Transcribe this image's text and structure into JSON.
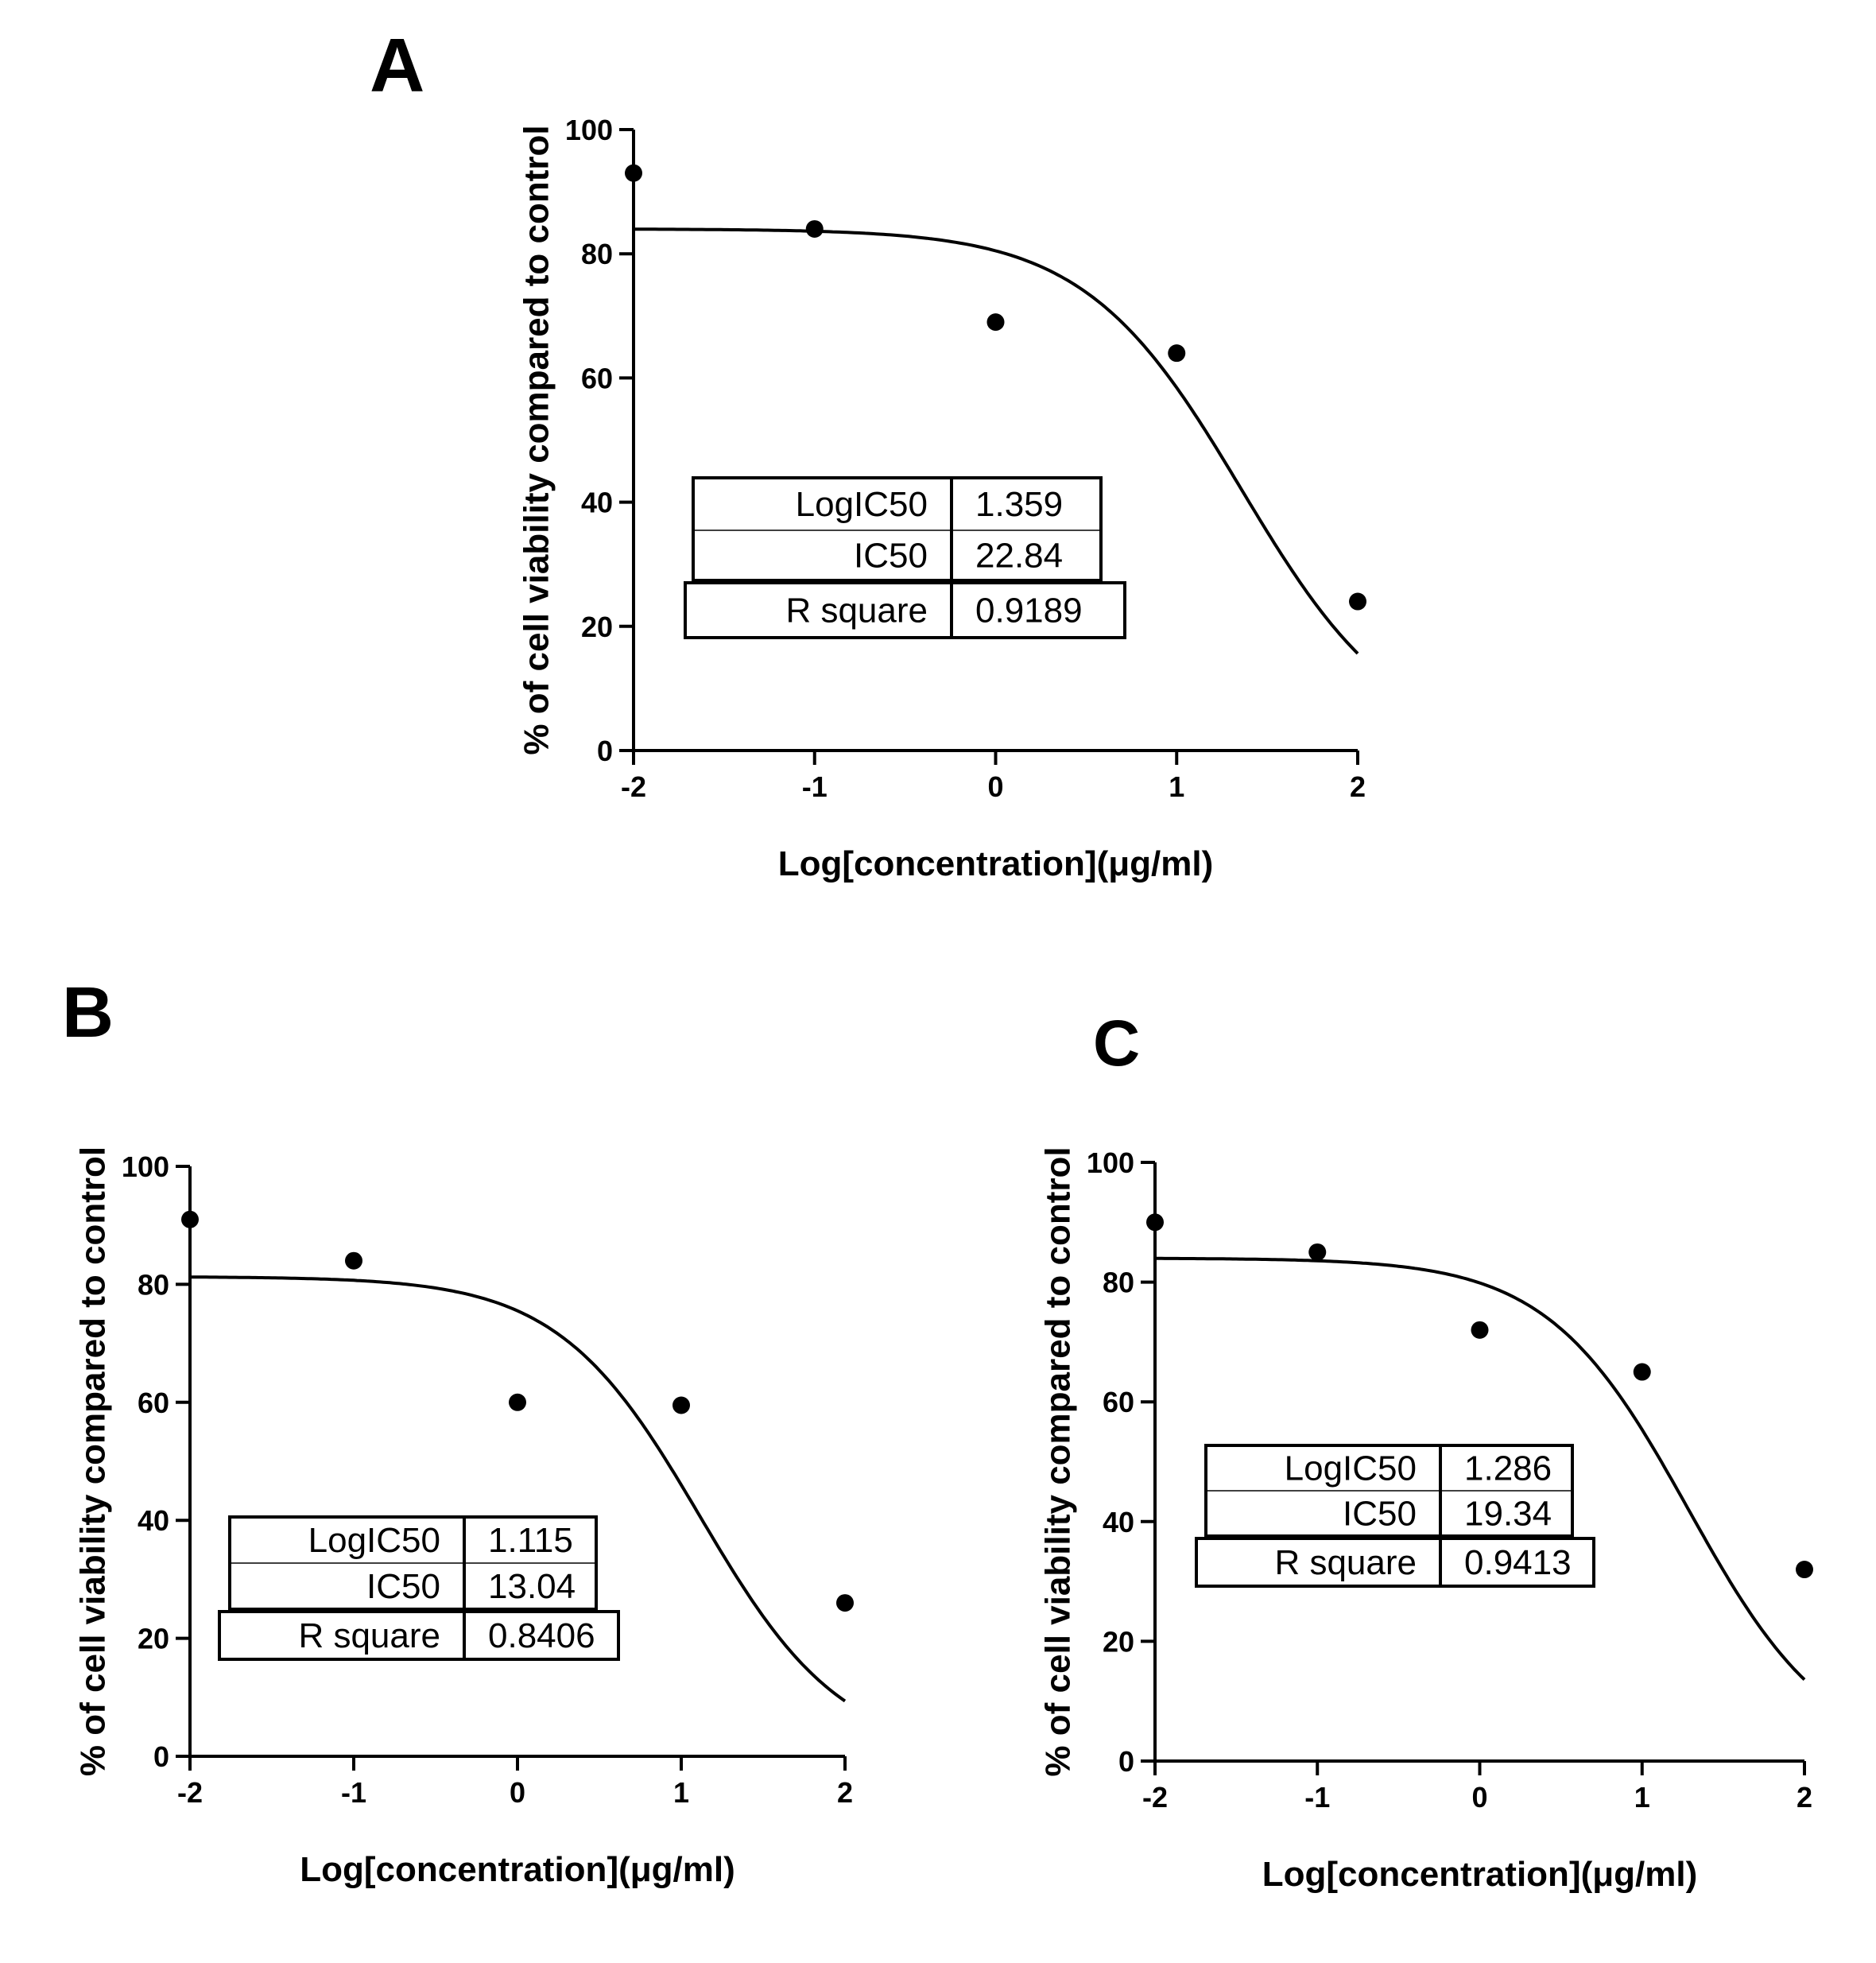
{
  "chart_data": [
    {
      "panel": "A",
      "type": "scatter",
      "fit": "sigmoidal dose-response",
      "xlabel": "Log[concentration](μg/ml)",
      "ylabel": "% of cell viability compared to control",
      "xlim": [
        -2,
        2
      ],
      "ylim": [
        0,
        100
      ],
      "xticks": [
        -2,
        -1,
        0,
        1,
        2
      ],
      "yticks": [
        0,
        20,
        40,
        60,
        80,
        100
      ],
      "x": [
        -2,
        -1,
        0,
        1,
        2
      ],
      "y": [
        93,
        84,
        69,
        64,
        24
      ],
      "curve": {
        "top": 84,
        "bottom": 0,
        "logIC50": 1.359,
        "hillslope": -1
      },
      "stats": [
        {
          "label": "LogIC50",
          "value": "1.359"
        },
        {
          "label": "IC50",
          "value": "22.84"
        },
        {
          "label": "R square",
          "value": "0.9189"
        }
      ]
    },
    {
      "panel": "B",
      "type": "scatter",
      "fit": "sigmoidal dose-response",
      "xlabel": "Log[concentration](μg/ml)",
      "ylabel": "% of cell viability compared to control",
      "xlim": [
        -2,
        2
      ],
      "ylim": [
        0,
        100
      ],
      "xticks": [
        -2,
        -1,
        0,
        1,
        2
      ],
      "yticks": [
        0,
        20,
        40,
        60,
        80,
        100
      ],
      "x": [
        -2,
        -1,
        0,
        1,
        2
      ],
      "y": [
        91,
        84,
        60,
        59.5,
        26
      ],
      "curve": {
        "top": 81.3,
        "bottom": 0,
        "logIC50": 1.115,
        "hillslope": -1
      },
      "stats": [
        {
          "label": "LogIC50",
          "value": "1.115"
        },
        {
          "label": "IC50",
          "value": "13.04"
        },
        {
          "label": "R square",
          "value": "0.8406"
        }
      ]
    },
    {
      "panel": "C",
      "type": "scatter",
      "fit": "sigmoidal dose-response",
      "xlabel": "Log[concentration](μg/ml)",
      "ylabel": "% of cell viability compared to control",
      "xlim": [
        -2,
        2
      ],
      "ylim": [
        0,
        100
      ],
      "xticks": [
        -2,
        -1,
        0,
        1,
        2
      ],
      "yticks": [
        0,
        20,
        40,
        60,
        80,
        100
      ],
      "x": [
        -2,
        -1,
        0,
        1,
        2
      ],
      "y": [
        90,
        85,
        72,
        65,
        32
      ],
      "curve": {
        "top": 84,
        "bottom": 0,
        "logIC50": 1.286,
        "hillslope": -1
      },
      "stats": [
        {
          "label": "LogIC50",
          "value": "1.286"
        },
        {
          "label": "IC50",
          "value": "19.34"
        },
        {
          "label": "R square",
          "value": "0.9413"
        }
      ]
    }
  ]
}
